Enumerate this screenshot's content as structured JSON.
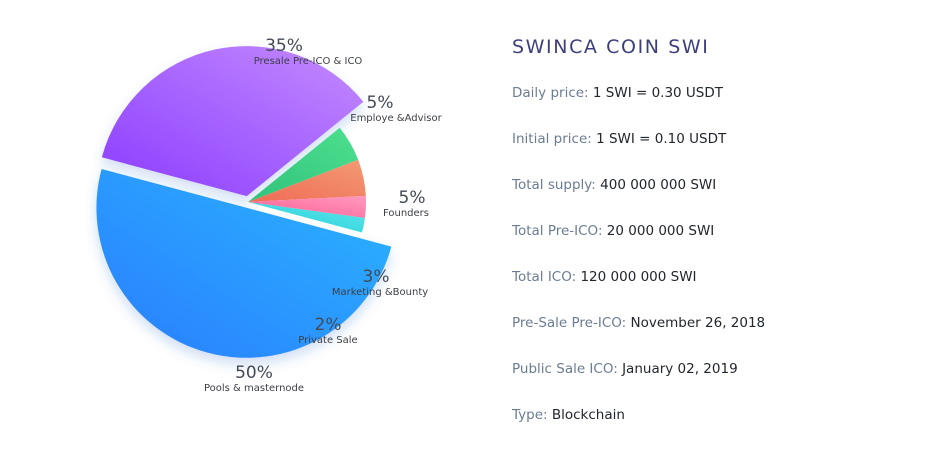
{
  "colors": {
    "presale": [
      "#8a3cff",
      "#c58bff"
    ],
    "employee": [
      "#2fc27a",
      "#4ee08f"
    ],
    "founders": [
      "#f06b55",
      "#f29a74"
    ],
    "marketing": [
      "#ff5d92",
      "#ff9abf"
    ],
    "private": [
      "#22cdd9",
      "#5fe7ea"
    ],
    "pools": [
      "#2a7dff",
      "#2ab6ff"
    ]
  },
  "chart_data": {
    "type": "pie",
    "title": "",
    "slices": [
      {
        "label": "Presale Pre-ICO & ICO",
        "value": 35,
        "pct_label": "35%",
        "color_key": "presale",
        "exploded": true
      },
      {
        "label": "Employe &Advisor",
        "value": 5,
        "pct_label": "5%",
        "color_key": "employee",
        "exploded": false
      },
      {
        "label": "Founders",
        "value": 5,
        "pct_label": "5%",
        "color_key": "founders",
        "exploded": false
      },
      {
        "label": "Marketing &Bounty",
        "value": 3,
        "pct_label": "3%",
        "color_key": "marketing",
        "exploded": false
      },
      {
        "label": "Private Sale",
        "value": 2,
        "pct_label": "2%",
        "color_key": "private",
        "exploded": false
      },
      {
        "label": "Pools & masternode",
        "value": 50,
        "pct_label": "50%",
        "color_key": "pools",
        "exploded": true
      }
    ]
  },
  "info": {
    "title": "SWINCA COIN SWI",
    "rows": [
      {
        "label": "Daily price:",
        "value": "1 SWI = 0.30 USDT"
      },
      {
        "label": "Initial price:",
        "value": "1 SWI = 0.10 USDT"
      },
      {
        "label": "Total supply:",
        "value": "400 000 000 SWI"
      },
      {
        "label": "Total Pre-ICO:",
        "value": "20 000 000 SWI"
      },
      {
        "label": "Total ICO:",
        "value": "120 000 000 SWI"
      },
      {
        "label": "Pre-Sale Pre-ICO:",
        "value": "November 26, 2018"
      },
      {
        "label": "Public Sale ICO:",
        "value": "January 02, 2019"
      },
      {
        "label": "Type:",
        "value": "Blockchain"
      }
    ]
  }
}
